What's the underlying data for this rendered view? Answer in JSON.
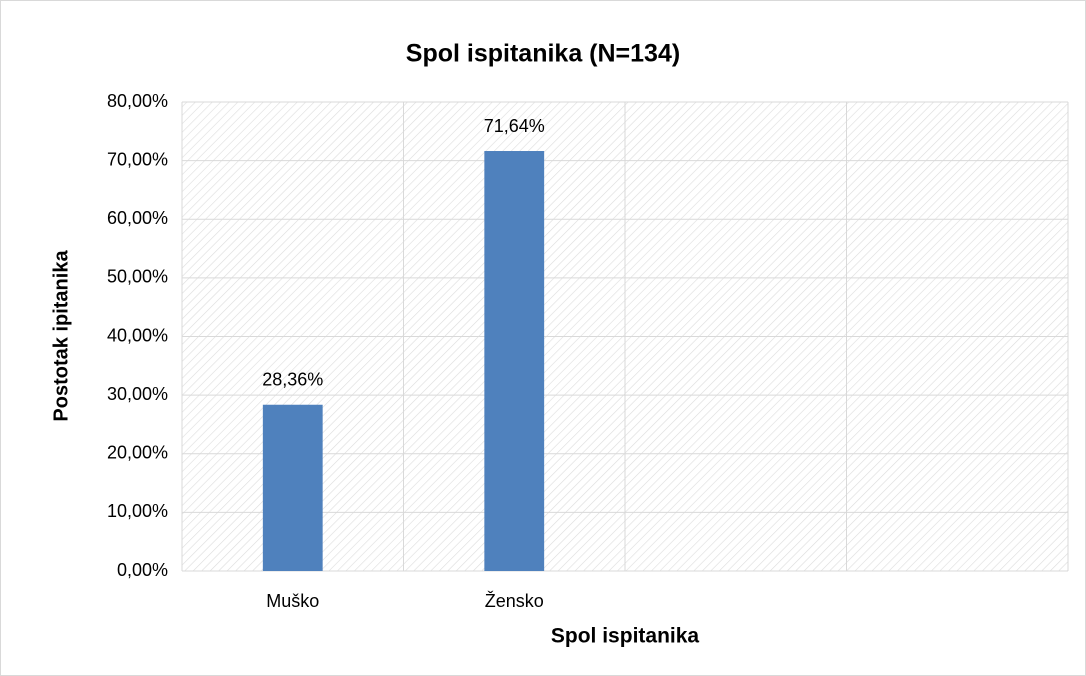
{
  "chart_data": {
    "type": "bar",
    "title": "Spol ispitanika (N=134)",
    "x_label": "Spol ispitanika",
    "y_label": "Postotak ipitanika",
    "categories": [
      "Muško",
      "Žensko",
      null,
      null
    ],
    "values": [
      28.36,
      71.64,
      null,
      null
    ],
    "value_labels": [
      "28,36%",
      "71,64%",
      null,
      null
    ],
    "color": "#4f81bd",
    "ylim": [
      0,
      80
    ],
    "yticks": [
      {
        "value": 0,
        "label": "0,00%"
      },
      {
        "value": 10,
        "label": "10,00%"
      },
      {
        "value": 20,
        "label": "20,00%"
      },
      {
        "value": 30,
        "label": "30,00%"
      },
      {
        "value": 40,
        "label": "40,00%"
      },
      {
        "value": 50,
        "label": "50,00%"
      },
      {
        "value": 60,
        "label": "60,00%"
      },
      {
        "value": 70,
        "label": "70,00%"
      },
      {
        "value": 80,
        "label": "80,00%"
      }
    ],
    "grid": true
  }
}
